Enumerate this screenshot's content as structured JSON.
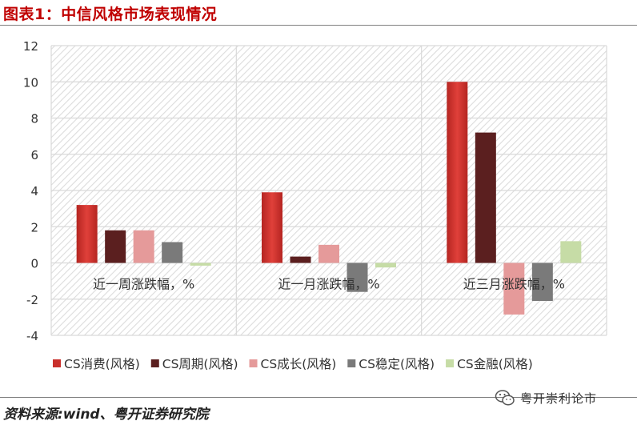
{
  "header": {
    "title": "图表1：中信风格市场表现情况"
  },
  "footer": {
    "source": "资料来源:wind、粤开证券研究院",
    "watermark": "粤开崇利论市"
  },
  "colors": {
    "title": "#c00000",
    "gridline": "#d9d9d9",
    "hatch": "#dcdcdc"
  },
  "chart_data": {
    "type": "bar",
    "categories": [
      "近一周涨跌幅，%",
      "近一月涨跌幅，%",
      "近三月涨跌幅，%"
    ],
    "series": [
      {
        "name": "CS消费(风格)",
        "color": "#c9302c",
        "values": [
          3.2,
          3.9,
          10.0
        ]
      },
      {
        "name": "CS周期(风格)",
        "color": "#5b1f1f",
        "values": [
          1.8,
          0.35,
          7.2
        ]
      },
      {
        "name": "CS成长(风格)",
        "color": "#e59a9a",
        "values": [
          1.8,
          1.0,
          -2.85
        ]
      },
      {
        "name": "CS稳定(风格)",
        "color": "#7a7a7a",
        "values": [
          1.15,
          -1.6,
          -2.1
        ]
      },
      {
        "name": "CS金融(风格)",
        "color": "#c6dca6",
        "values": [
          -0.15,
          -0.25,
          1.2
        ]
      }
    ],
    "ylim": [
      -4,
      12
    ],
    "yticks": [
      "12",
      "10",
      "8",
      "6",
      "4",
      "2",
      "0",
      "-2",
      "-4"
    ],
    "grid": true,
    "legend_position": "bottom"
  }
}
